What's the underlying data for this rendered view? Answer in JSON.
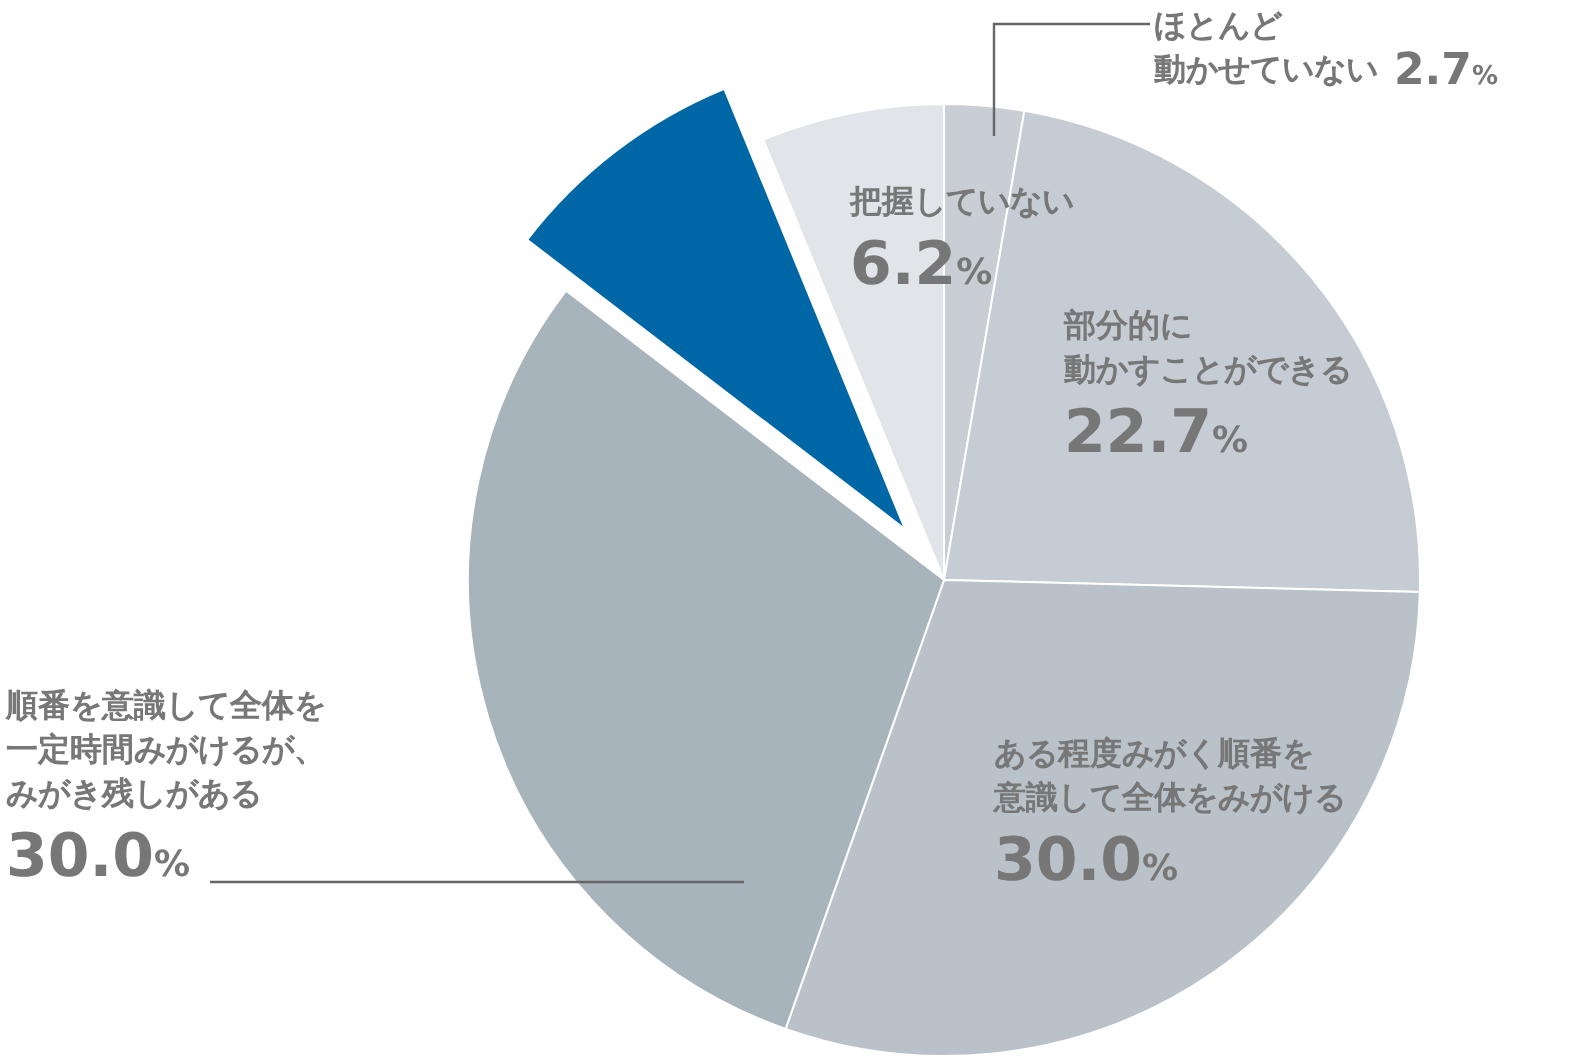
{
  "chart_data": {
    "type": "pie",
    "categories": [
      "ほとんど動かせていない",
      "部分的に動かすことができる",
      "ある程度みがく順番を意識して全体をみがける",
      "順番を意識して全体を一定時間みがけるが、みがき残しがある",
      null,
      "把握していない"
    ],
    "values": [
      2.7,
      22.7,
      30.0,
      30.0,
      8.4,
      6.2
    ],
    "value_labels": [
      "2.7%",
      "22.7%",
      "30.0%",
      "30.0%",
      null,
      "6.2%"
    ],
    "colors": [
      "#c9ced4",
      "#c6ccd3",
      "#b9c1c9",
      "#a8b4bc",
      "#0067a7",
      "#e1e5e9"
    ]
  }
}
